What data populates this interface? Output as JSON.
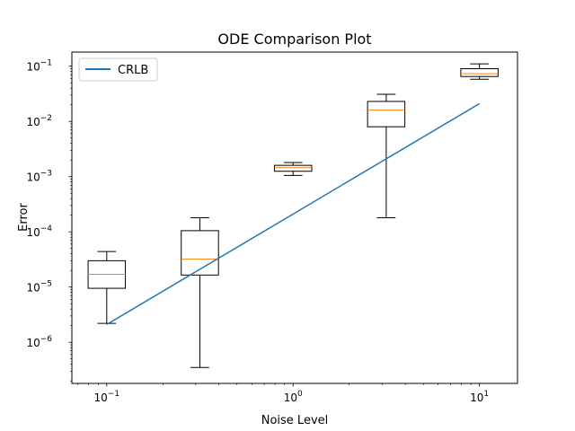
{
  "chart_data": {
    "type": "box",
    "title": "ODE Comparison Plot",
    "xlabel": "Noise Level",
    "ylabel": "Error",
    "xscale": "log",
    "yscale": "log",
    "xlim": [
      0.065,
      16
    ],
    "ylim": [
      1.8e-07,
      0.18
    ],
    "x_ticks": [
      {
        "value": 0.1,
        "base": "10",
        "exp": "−1"
      },
      {
        "value": 1,
        "base": "10",
        "exp": "0"
      },
      {
        "value": 10,
        "base": "10",
        "exp": "1"
      }
    ],
    "y_ticks": [
      {
        "value": 1e-06,
        "base": "10",
        "exp": "−6"
      },
      {
        "value": 1e-05,
        "base": "10",
        "exp": "−5"
      },
      {
        "value": 0.0001,
        "base": "10",
        "exp": "−4"
      },
      {
        "value": 0.001,
        "base": "10",
        "exp": "−3"
      },
      {
        "value": 0.01,
        "base": "10",
        "exp": "−2"
      },
      {
        "value": 0.1,
        "base": "10",
        "exp": "−1"
      }
    ],
    "boxes": [
      {
        "x": 0.1,
        "whisker_low": 2.2e-06,
        "q1": 9.5e-06,
        "median": 1.7e-05,
        "q3": 3e-05,
        "whisker_high": 4.4e-05
      },
      {
        "x": 0.316,
        "whisker_low": 3.5e-07,
        "q1": 1.65e-05,
        "median": 3.2e-05,
        "q3": 0.000105,
        "whisker_high": 0.00018
      },
      {
        "x": 1.0,
        "whisker_low": 0.00105,
        "q1": 0.00125,
        "median": 0.00145,
        "q3": 0.0016,
        "whisker_high": 0.0018
      },
      {
        "x": 3.16,
        "whisker_low": 0.00018,
        "q1": 0.008,
        "median": 0.016,
        "q3": 0.023,
        "whisker_high": 0.031
      },
      {
        "x": 10.0,
        "whisker_low": 0.058,
        "q1": 0.065,
        "median": 0.073,
        "q3": 0.09,
        "whisker_high": 0.11
      }
    ],
    "series": [
      {
        "name": "CRLB",
        "type": "line",
        "x": [
          0.1,
          10
        ],
        "y": [
          2.1e-06,
          0.021
        ]
      }
    ],
    "legend": {
      "placement": "top-left"
    },
    "grid": false,
    "colors": {
      "line": "#1f77b4",
      "median": "#ff7f0e",
      "box": "#000000"
    }
  }
}
